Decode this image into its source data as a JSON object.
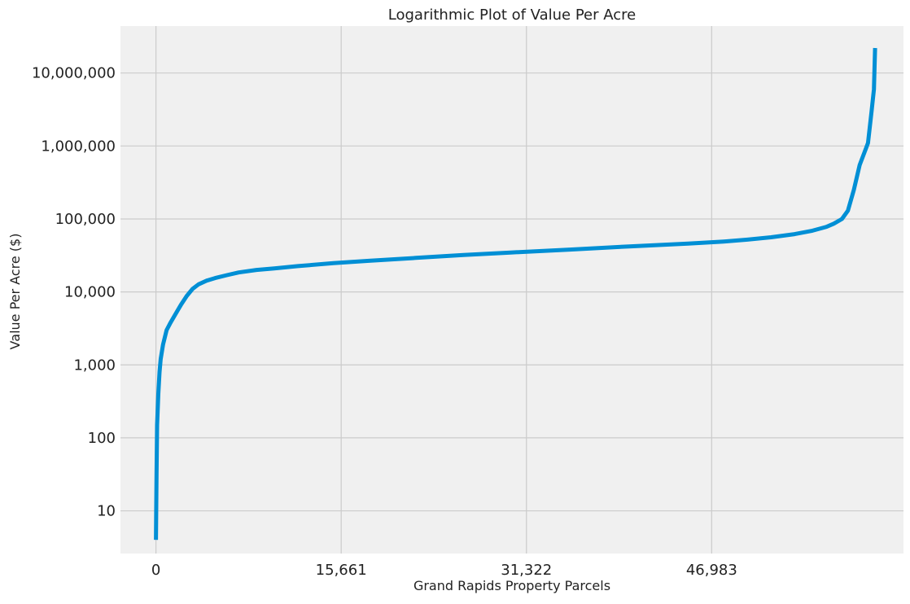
{
  "chart_data": {
    "type": "line",
    "title": "Logarithmic Plot of Value Per Acre",
    "xlabel": "Grand Rapids Property Parcels",
    "ylabel": "Value Per Acre ($)",
    "yscale": "log",
    "grid": true,
    "xlim": [
      -3000,
      63200
    ],
    "ylim": [
      2.6,
      44000000
    ],
    "x_ticks": [
      {
        "value": 0,
        "label": "0"
      },
      {
        "value": 15661,
        "label": "15,661"
      },
      {
        "value": 31322,
        "label": "31,322"
      },
      {
        "value": 46983,
        "label": "46,983"
      }
    ],
    "y_ticks": [
      {
        "value": 10,
        "label": "10"
      },
      {
        "value": 100,
        "label": "100"
      },
      {
        "value": 1000,
        "label": "1,000"
      },
      {
        "value": 10000,
        "label": "10,000"
      },
      {
        "value": 100000,
        "label": "100,000"
      },
      {
        "value": 1000000,
        "label": "1,000,000"
      },
      {
        "value": 10000000,
        "label": "10,000,000"
      }
    ],
    "series": [
      {
        "color": "#008fd5",
        "x": [
          0,
          50,
          100,
          200,
          300,
          400,
          600,
          900,
          1200,
          1600,
          2100,
          2600,
          3100,
          3600,
          4300,
          5000,
          6000,
          7000,
          8500,
          10000,
          12000,
          15000,
          18000,
          22000,
          26000,
          30000,
          35000,
          40000,
          45000,
          48000,
          50000,
          52000,
          54000,
          55500,
          56700,
          57300,
          58000,
          58500,
          59000,
          59500,
          60000,
          60200,
          60500,
          60700,
          60800
        ],
        "y": [
          4,
          30,
          150,
          400,
          800,
          1200,
          1900,
          3000,
          3700,
          4800,
          6600,
          8800,
          11000,
          12700,
          14300,
          15500,
          17000,
          18500,
          20000,
          21000,
          22600,
          24800,
          26700,
          29300,
          32000,
          34700,
          38000,
          42000,
          46000,
          49000,
          52000,
          56000,
          62000,
          69000,
          78000,
          86000,
          100000,
          130000,
          250000,
          550000,
          900000,
          1100000,
          3000000,
          6000000,
          22000000
        ]
      }
    ]
  }
}
